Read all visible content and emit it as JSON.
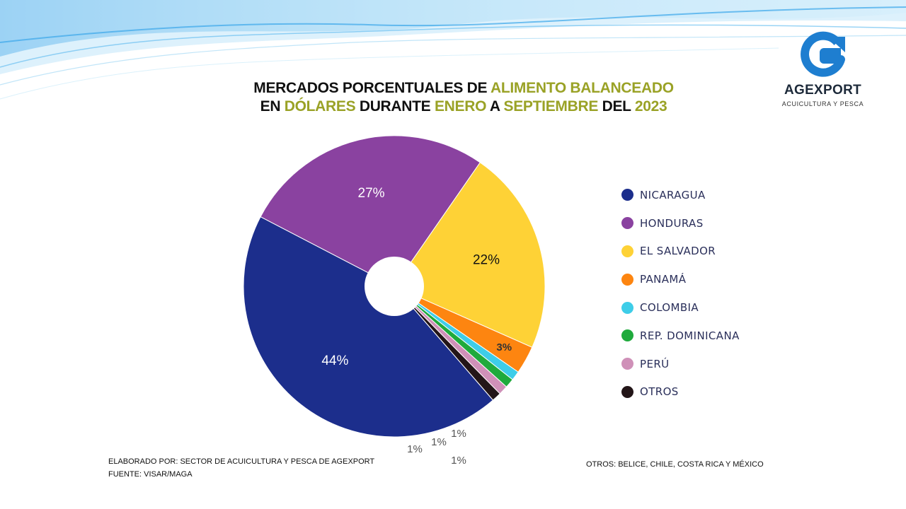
{
  "title": {
    "line1": [
      {
        "text": "MERCADOS PORCENTUALES DE ",
        "hl": false
      },
      {
        "text": "ALIMENTO BALANCEADO",
        "hl": true
      }
    ],
    "line2": [
      {
        "text": "EN ",
        "hl": false
      },
      {
        "text": "DÓLARES",
        "hl": true
      },
      {
        "text": " DURANTE ",
        "hl": false
      },
      {
        "text": "ENERO",
        "hl": true
      },
      {
        "text": " A ",
        "hl": false
      },
      {
        "text": "SEPTIEMBRE",
        "hl": true
      },
      {
        "text": " DEL ",
        "hl": false
      },
      {
        "text": "2023",
        "hl": true
      }
    ]
  },
  "logo": {
    "brand": "AGEXPORT",
    "subtitle": "ACUICULTURA Y PESCA"
  },
  "chart_data": {
    "type": "pie",
    "donut_hole": true,
    "legend_position": "right",
    "slices": [
      {
        "name": "NICARAGUA",
        "value": 44,
        "label": "44%",
        "color": "#1c2e8c",
        "label_color": "#ffffff"
      },
      {
        "name": "HONDURAS",
        "value": 27,
        "label": "27%",
        "color": "#8a42a0",
        "label_color": "#ffffff"
      },
      {
        "name": "EL SALVADOR",
        "value": 22,
        "label": "22%",
        "color": "#fed236",
        "label_color": "#111111"
      },
      {
        "name": "PANAMÁ",
        "value": 3,
        "label": "3%",
        "color": "#fd8510",
        "label_color": "#333333"
      },
      {
        "name": "COLOMBIA",
        "value": 1,
        "label": "1%",
        "color": "#3ecde8",
        "label_color": "#555555"
      },
      {
        "name": "REP. DOMINICANA",
        "value": 1,
        "label": "1%",
        "color": "#1faa3c",
        "label_color": "#555555"
      },
      {
        "name": "PERÚ",
        "value": 1,
        "label": "1%",
        "color": "#cf90b8",
        "label_color": "#555555"
      },
      {
        "name": "OTROS",
        "value": 1,
        "label": "1%",
        "color": "#231518",
        "label_color": "#555555"
      }
    ]
  },
  "footer": {
    "credit": "ELABORADO POR: SECTOR DE ACUICULTURA Y PESCA DE AGEXPORT",
    "source": "FUENTE: VISAR/MAGA",
    "others_note": "OTROS:  BELICE, CHILE, COSTA RICA Y MÉXICO"
  },
  "colors": {
    "title_highlight": "#9aa226",
    "logo_blue": "#1e7ed0"
  }
}
